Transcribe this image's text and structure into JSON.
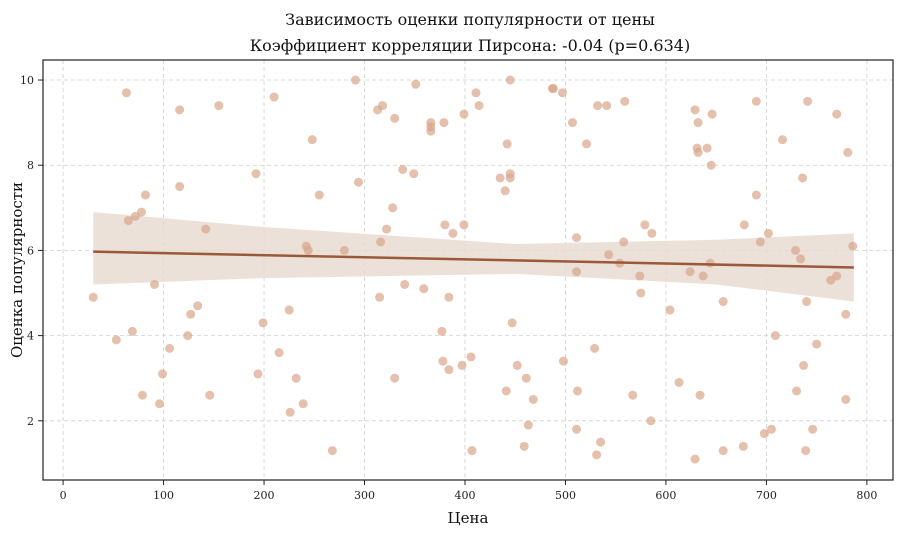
{
  "chart_data": {
    "type": "scatter",
    "title": "Зависимость оценки популярности от цены",
    "subtitle": "Коэффициент корреляции Пирсона: -0.04 (p=0.634)",
    "xlabel": "Цена",
    "ylabel": "Оценка популярности",
    "xlim": [
      -20,
      826
    ],
    "ylim": [
      0.61,
      10.47
    ],
    "xticks": [
      0,
      100,
      200,
      300,
      400,
      500,
      600,
      700,
      800
    ],
    "yticks": [
      2,
      4,
      6,
      8,
      10
    ],
    "grid": true,
    "colors": {
      "points": "#d9a58a",
      "line": "#9a5a3a",
      "band": "#e6d9d0"
    },
    "regression": {
      "x": [
        30,
        787
      ],
      "y": [
        5.97,
        5.6
      ]
    },
    "confidence_band": {
      "x": [
        30,
        200,
        450,
        650,
        787
      ],
      "lower": [
        5.2,
        5.35,
        5.45,
        5.2,
        4.8
      ],
      "upper": [
        6.9,
        6.55,
        6.15,
        6.25,
        6.4
      ]
    },
    "points": [
      [
        30,
        4.9
      ],
      [
        63,
        9.7
      ],
      [
        65,
        6.7
      ],
      [
        72,
        6.8
      ],
      [
        78,
        6.9
      ],
      [
        82,
        7.3
      ],
      [
        53,
        3.9
      ],
      [
        69,
        4.1
      ],
      [
        79,
        2.6
      ],
      [
        91,
        5.2
      ],
      [
        96,
        2.4
      ],
      [
        99,
        3.1
      ],
      [
        106,
        3.7
      ],
      [
        116,
        9.3
      ],
      [
        116,
        7.5
      ],
      [
        124,
        4.0
      ],
      [
        127,
        4.5
      ],
      [
        134,
        4.7
      ],
      [
        142,
        6.5
      ],
      [
        146,
        2.6
      ],
      [
        155,
        9.4
      ],
      [
        192,
        7.8
      ],
      [
        194,
        3.1
      ],
      [
        199,
        4.3
      ],
      [
        210,
        9.6
      ],
      [
        215,
        3.6
      ],
      [
        225,
        4.6
      ],
      [
        226,
        2.2
      ],
      [
        232,
        3.0
      ],
      [
        239,
        2.4
      ],
      [
        242,
        6.1
      ],
      [
        244,
        6.0
      ],
      [
        248,
        8.6
      ],
      [
        255,
        7.3
      ],
      [
        268,
        1.3
      ],
      [
        280,
        6.0
      ],
      [
        291,
        10.0
      ],
      [
        294,
        7.6
      ],
      [
        313,
        9.3
      ],
      [
        318,
        9.4
      ],
      [
        315,
        4.9
      ],
      [
        316,
        6.2
      ],
      [
        322,
        6.5
      ],
      [
        330,
        9.1
      ],
      [
        328,
        7.0
      ],
      [
        330,
        3.0
      ],
      [
        338,
        7.9
      ],
      [
        340,
        5.2
      ],
      [
        351,
        9.9
      ],
      [
        349,
        7.8
      ],
      [
        359,
        5.1
      ],
      [
        366,
        9.0
      ],
      [
        366,
        8.9
      ],
      [
        366,
        8.8
      ],
      [
        379,
        9.0
      ],
      [
        380,
        6.6
      ],
      [
        377,
        4.1
      ],
      [
        378,
        3.4
      ],
      [
        384,
        3.2
      ],
      [
        384,
        4.9
      ],
      [
        388,
        6.4
      ],
      [
        397,
        3.3
      ],
      [
        399,
        9.2
      ],
      [
        399,
        6.6
      ],
      [
        407,
        1.3
      ],
      [
        406,
        3.5
      ],
      [
        411,
        9.7
      ],
      [
        414,
        9.4
      ],
      [
        442,
        8.5
      ],
      [
        435,
        7.7
      ],
      [
        445,
        7.8
      ],
      [
        445,
        7.7
      ],
      [
        440,
        7.4
      ],
      [
        445,
        10.0
      ],
      [
        487,
        9.8
      ],
      [
        488,
        9.8
      ],
      [
        497,
        9.7
      ],
      [
        507,
        9.0
      ],
      [
        521,
        8.5
      ],
      [
        532,
        9.4
      ],
      [
        541,
        9.4
      ],
      [
        559,
        9.5
      ],
      [
        511,
        6.3
      ],
      [
        543,
        5.9
      ],
      [
        554,
        5.7
      ],
      [
        558,
        6.2
      ],
      [
        579,
        6.6
      ],
      [
        586,
        6.4
      ],
      [
        511,
        5.5
      ],
      [
        574,
        5.4
      ],
      [
        629,
        9.3
      ],
      [
        632,
        9.0
      ],
      [
        646,
        9.2
      ],
      [
        631,
        8.4
      ],
      [
        632,
        8.3
      ],
      [
        641,
        8.4
      ],
      [
        645,
        8.0
      ],
      [
        624,
        5.5
      ],
      [
        637,
        5.4
      ],
      [
        644,
        5.7
      ],
      [
        690,
        9.5
      ],
      [
        716,
        8.6
      ],
      [
        741,
        9.5
      ],
      [
        770,
        9.2
      ],
      [
        781,
        8.3
      ],
      [
        690,
        7.3
      ],
      [
        736,
        7.7
      ],
      [
        678,
        6.6
      ],
      [
        702,
        6.4
      ],
      [
        694,
        6.2
      ],
      [
        729,
        6.0
      ],
      [
        734,
        5.8
      ],
      [
        786,
        6.1
      ],
      [
        764,
        5.3
      ],
      [
        770,
        5.4
      ],
      [
        575,
        5.0
      ],
      [
        657,
        4.8
      ],
      [
        604,
        4.6
      ],
      [
        740,
        4.8
      ],
      [
        779,
        4.5
      ],
      [
        709,
        4.0
      ],
      [
        750,
        3.8
      ],
      [
        447,
        4.3
      ],
      [
        529,
        3.7
      ],
      [
        498,
        3.4
      ],
      [
        737,
        3.3
      ],
      [
        613,
        2.9
      ],
      [
        452,
        3.3
      ],
      [
        461,
        3.0
      ],
      [
        441,
        2.7
      ],
      [
        468,
        2.5
      ],
      [
        512,
        2.7
      ],
      [
        567,
        2.6
      ],
      [
        634,
        2.6
      ],
      [
        730,
        2.7
      ],
      [
        779,
        2.5
      ],
      [
        585,
        2.0
      ],
      [
        463,
        1.9
      ],
      [
        511,
        1.8
      ],
      [
        535,
        1.5
      ],
      [
        459,
        1.4
      ],
      [
        531,
        1.2
      ],
      [
        698,
        1.7
      ],
      [
        705,
        1.8
      ],
      [
        746,
        1.8
      ],
      [
        677,
        1.4
      ],
      [
        657,
        1.3
      ],
      [
        629,
        1.1
      ],
      [
        739,
        1.3
      ]
    ]
  }
}
